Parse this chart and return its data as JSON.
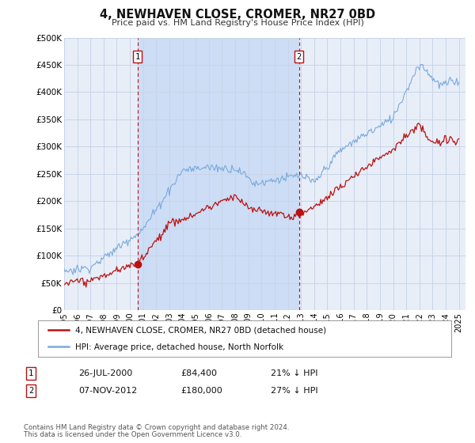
{
  "title": "4, NEWHAVEN CLOSE, CROMER, NR27 0BD",
  "subtitle": "Price paid vs. HM Land Registry's House Price Index (HPI)",
  "ylim": [
    0,
    500000
  ],
  "yticks": [
    0,
    50000,
    100000,
    150000,
    200000,
    250000,
    300000,
    350000,
    400000,
    450000,
    500000
  ],
  "ytick_labels": [
    "£0",
    "£50K",
    "£100K",
    "£150K",
    "£200K",
    "£250K",
    "£300K",
    "£350K",
    "£400K",
    "£450K",
    "£500K"
  ],
  "xlim_start": 1995.0,
  "xlim_end": 2025.5,
  "xticks": [
    1995,
    1996,
    1997,
    1998,
    1999,
    2000,
    2001,
    2002,
    2003,
    2004,
    2005,
    2006,
    2007,
    2008,
    2009,
    2010,
    2011,
    2012,
    2013,
    2014,
    2015,
    2016,
    2017,
    2018,
    2019,
    2020,
    2021,
    2022,
    2023,
    2024,
    2025
  ],
  "background_color": "#ffffff",
  "plot_bg_color": "#dde8f8",
  "plot_bg_color_outside": "#e8eef8",
  "grid_color": "#c8d4e8",
  "hpi_color": "#7aaadd",
  "price_color": "#bb1111",
  "shade_color": "#ccddf5",
  "marker1_date": 2000.57,
  "marker1_price": 84400,
  "marker2_date": 2012.85,
  "marker2_price": 180000,
  "vline1_x": 2000.57,
  "vline2_x": 2012.85,
  "legend_label1": "4, NEWHAVEN CLOSE, CROMER, NR27 0BD (detached house)",
  "legend_label2": "HPI: Average price, detached house, North Norfolk",
  "footer1": "Contains HM Land Registry data © Crown copyright and database right 2024.",
  "footer2": "This data is licensed under the Open Government Licence v3.0.",
  "info1_num": "1",
  "info1_date": "26-JUL-2000",
  "info1_price": "£84,400",
  "info1_pct": "21% ↓ HPI",
  "info2_num": "2",
  "info2_date": "07-NOV-2012",
  "info2_price": "£180,000",
  "info2_pct": "27% ↓ HPI"
}
